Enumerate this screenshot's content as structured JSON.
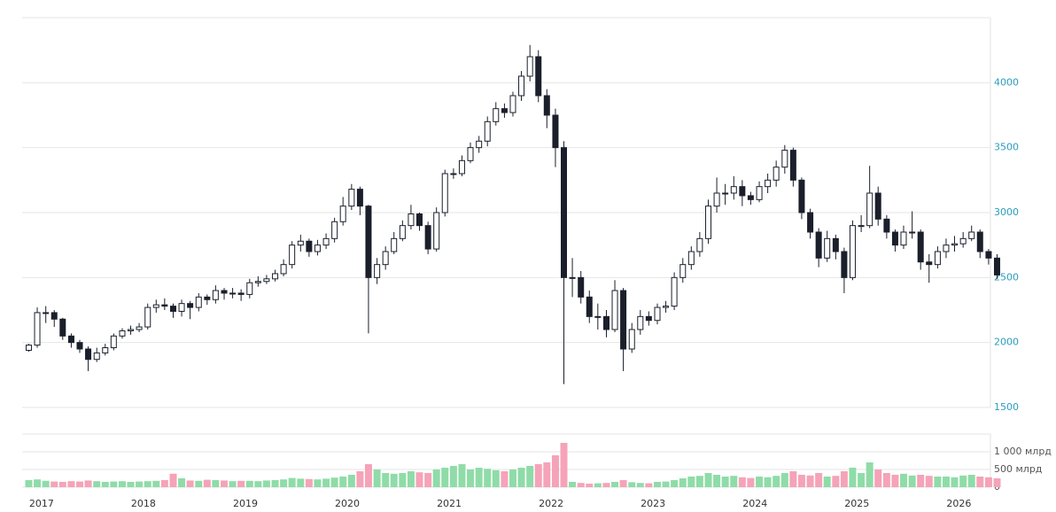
{
  "chart_data": [
    {
      "type": "candlestick",
      "up_color": "#ffffff",
      "down_color": "#1a1f2b",
      "outline_color": "#1a1f2b",
      "tick_color": "#2a9dbd",
      "grid": true,
      "xlim": [
        2016.81,
        2026.31
      ],
      "ylim": [
        1500,
        4500
      ],
      "yticks": [
        1500,
        2000,
        2500,
        3000,
        3500,
        4000
      ],
      "x": [
        2016.875,
        2016.958,
        2017.042,
        2017.125,
        2017.208,
        2017.292,
        2017.375,
        2017.458,
        2017.542,
        2017.625,
        2017.708,
        2017.792,
        2017.875,
        2017.958,
        2018.042,
        2018.125,
        2018.208,
        2018.292,
        2018.375,
        2018.458,
        2018.542,
        2018.625,
        2018.708,
        2018.792,
        2018.875,
        2018.958,
        2019.042,
        2019.125,
        2019.208,
        2019.292,
        2019.375,
        2019.458,
        2019.542,
        2019.625,
        2019.708,
        2019.792,
        2019.875,
        2019.958,
        2020.042,
        2020.125,
        2020.208,
        2020.292,
        2020.375,
        2020.458,
        2020.542,
        2020.625,
        2020.708,
        2020.792,
        2020.875,
        2020.958,
        2021.042,
        2021.125,
        2021.208,
        2021.292,
        2021.375,
        2021.458,
        2021.542,
        2021.625,
        2021.708,
        2021.792,
        2021.875,
        2021.958,
        2022.042,
        2022.125,
        2022.208,
        2022.292,
        2022.375,
        2022.458,
        2022.542,
        2022.625,
        2022.708,
        2022.792,
        2022.875,
        2022.958,
        2023.042,
        2023.125,
        2023.208,
        2023.292,
        2023.375,
        2023.458,
        2023.542,
        2023.625,
        2023.708,
        2023.792,
        2023.875,
        2023.958,
        2024.042,
        2024.125,
        2024.208,
        2024.292,
        2024.375,
        2024.458,
        2024.542,
        2024.625,
        2024.708,
        2024.792,
        2024.875,
        2024.958,
        2025.042,
        2025.125,
        2025.208,
        2025.292,
        2025.375,
        2025.458,
        2025.542,
        2025.625,
        2025.708,
        2025.792,
        2025.875,
        2025.958,
        2026.042,
        2026.125,
        2026.208,
        2026.292,
        2026.375
      ],
      "open": [
        1940,
        1980,
        2230,
        2230,
        2180,
        2050,
        2000,
        1950,
        1870,
        1920,
        1960,
        2050,
        2090,
        2100,
        2120,
        2270,
        2290,
        2280,
        2240,
        2300,
        2270,
        2350,
        2330,
        2400,
        2380,
        2380,
        2370,
        2460,
        2470,
        2490,
        2530,
        2600,
        2750,
        2780,
        2700,
        2750,
        2800,
        2930,
        3050,
        3180,
        3050,
        2500,
        2600,
        2700,
        2800,
        2900,
        2990,
        2900,
        2720,
        3000,
        3300,
        3300,
        3400,
        3500,
        3550,
        3700,
        3800,
        3770,
        3900,
        4050,
        4200,
        3900,
        3750,
        3500,
        2500,
        2500,
        2350,
        2200,
        2200,
        2100,
        2400,
        1950,
        2100,
        2200,
        2170,
        2270,
        2280,
        2500,
        2600,
        2700,
        2800,
        3050,
        3150,
        3150,
        3200,
        3130,
        3100,
        3200,
        3250,
        3350,
        3480,
        3250,
        3000,
        2850,
        2650,
        2800,
        2700,
        2500,
        2900,
        2900,
        3150,
        2950,
        2850,
        2750,
        2850,
        2850,
        2620,
        2600,
        2700,
        2750,
        2760,
        2800,
        2850,
        2700,
        2650
      ],
      "high": [
        1990,
        2270,
        2280,
        2250,
        2190,
        2070,
        2020,
        1970,
        1960,
        1990,
        2070,
        2110,
        2130,
        2150,
        2300,
        2330,
        2340,
        2300,
        2330,
        2320,
        2380,
        2370,
        2440,
        2420,
        2420,
        2410,
        2490,
        2510,
        2520,
        2560,
        2640,
        2780,
        2830,
        2800,
        2790,
        2840,
        2960,
        3120,
        3220,
        3200,
        3060,
        2650,
        2740,
        2850,
        2940,
        3060,
        3000,
        2930,
        3040,
        3330,
        3340,
        3440,
        3540,
        3590,
        3740,
        3850,
        3840,
        3930,
        4090,
        4290,
        4250,
        3950,
        3800,
        3550,
        2650,
        2550,
        2400,
        2300,
        2250,
        2480,
        2420,
        2150,
        2250,
        2240,
        2300,
        2320,
        2540,
        2650,
        2740,
        2850,
        3100,
        3270,
        3220,
        3280,
        3250,
        3160,
        3240,
        3300,
        3400,
        3520,
        3500,
        3270,
        3030,
        2880,
        2860,
        2830,
        2730,
        2940,
        2980,
        3360,
        3200,
        2980,
        2870,
        2900,
        3010,
        2870,
        2680,
        2740,
        2800,
        2820,
        2850,
        2900,
        2870,
        2720,
        2680
      ],
      "low": [
        1930,
        1960,
        2150,
        2120,
        2020,
        1960,
        1920,
        1780,
        1850,
        1900,
        1940,
        2030,
        2060,
        2080,
        2100,
        2230,
        2250,
        2190,
        2200,
        2180,
        2240,
        2290,
        2300,
        2330,
        2340,
        2320,
        2340,
        2430,
        2450,
        2470,
        2510,
        2570,
        2700,
        2660,
        2670,
        2720,
        2770,
        2900,
        3020,
        2980,
        2070,
        2450,
        2560,
        2680,
        2780,
        2870,
        2860,
        2680,
        2700,
        2970,
        3260,
        3280,
        3380,
        3460,
        3510,
        3670,
        3730,
        3740,
        3860,
        4010,
        3850,
        3650,
        3350,
        1680,
        2350,
        2300,
        2150,
        2100,
        2040,
        2080,
        1780,
        1920,
        2060,
        2130,
        2140,
        2230,
        2250,
        2460,
        2560,
        2660,
        2760,
        3000,
        3060,
        3100,
        3050,
        3060,
        3080,
        3150,
        3200,
        3300,
        3200,
        2950,
        2800,
        2580,
        2620,
        2640,
        2380,
        2480,
        2850,
        2880,
        2900,
        2800,
        2700,
        2720,
        2800,
        2560,
        2460,
        2570,
        2650,
        2700,
        2730,
        2780,
        2650,
        2600,
        2490
      ],
      "close": [
        1980,
        2230,
        2230,
        2180,
        2050,
        2000,
        1950,
        1870,
        1920,
        1960,
        2050,
        2090,
        2100,
        2120,
        2270,
        2290,
        2280,
        2240,
        2300,
        2270,
        2350,
        2330,
        2400,
        2380,
        2380,
        2370,
        2460,
        2470,
        2490,
        2530,
        2600,
        2750,
        2780,
        2700,
        2750,
        2800,
        2930,
        3050,
        3180,
        3050,
        2500,
        2600,
        2700,
        2800,
        2900,
        2990,
        2900,
        2720,
        3000,
        3300,
        3300,
        3400,
        3500,
        3550,
        3700,
        3800,
        3770,
        3900,
        4050,
        4200,
        3900,
        3750,
        3500,
        2500,
        2500,
        2350,
        2200,
        2200,
        2100,
        2400,
        1950,
        2100,
        2200,
        2170,
        2270,
        2280,
        2500,
        2600,
        2700,
        2800,
        3050,
        3150,
        3150,
        3200,
        3130,
        3100,
        3200,
        3250,
        3350,
        3480,
        3250,
        3000,
        2850,
        2650,
        2800,
        2700,
        2500,
        2900,
        2900,
        3150,
        2950,
        2850,
        2750,
        2850,
        2850,
        2620,
        2600,
        2700,
        2750,
        2760,
        2800,
        2850,
        2700,
        2650,
        2520
      ]
    },
    {
      "type": "volume",
      "up_color": "#8fdca8",
      "down_color": "#f5a3b8",
      "tick_color": "#555555",
      "grid": true,
      "xlim": [
        2016.81,
        2026.31
      ],
      "xticks": [
        2017,
        2018,
        2019,
        2020,
        2021,
        2022,
        2023,
        2024,
        2025,
        2026
      ],
      "ylim": [
        0,
        1500
      ],
      "yticks": [
        0,
        {
          "value": 500,
          "label": "500 млрд"
        },
        {
          "value": 1000,
          "label": "1 000 млрд"
        }
      ],
      "x": [
        2016.875,
        2016.958,
        2017.042,
        2017.125,
        2017.208,
        2017.292,
        2017.375,
        2017.458,
        2017.542,
        2017.625,
        2017.708,
        2017.792,
        2017.875,
        2017.958,
        2018.042,
        2018.125,
        2018.208,
        2018.292,
        2018.375,
        2018.458,
        2018.542,
        2018.625,
        2018.708,
        2018.792,
        2018.875,
        2018.958,
        2019.042,
        2019.125,
        2019.208,
        2019.292,
        2019.375,
        2019.458,
        2019.542,
        2019.625,
        2019.708,
        2019.792,
        2019.875,
        2019.958,
        2020.042,
        2020.125,
        2020.208,
        2020.292,
        2020.375,
        2020.458,
        2020.542,
        2020.625,
        2020.708,
        2020.792,
        2020.875,
        2020.958,
        2021.042,
        2021.125,
        2021.208,
        2021.292,
        2021.375,
        2021.458,
        2021.542,
        2021.625,
        2021.708,
        2021.792,
        2021.875,
        2021.958,
        2022.042,
        2022.125,
        2022.208,
        2022.292,
        2022.375,
        2022.458,
        2022.542,
        2022.625,
        2022.708,
        2022.792,
        2022.875,
        2022.958,
        2023.042,
        2023.125,
        2023.208,
        2023.292,
        2023.375,
        2023.458,
        2023.542,
        2023.625,
        2023.708,
        2023.792,
        2023.875,
        2023.958,
        2024.042,
        2024.125,
        2024.208,
        2024.292,
        2024.375,
        2024.458,
        2024.542,
        2024.625,
        2024.708,
        2024.792,
        2024.875,
        2024.958,
        2025.042,
        2025.125,
        2025.208,
        2025.292,
        2025.375,
        2025.458,
        2025.542,
        2025.625,
        2025.708,
        2025.792,
        2025.875,
        2025.958,
        2026.042,
        2026.125,
        2026.208,
        2026.292,
        2026.375
      ],
      "values": [
        200,
        220,
        180,
        160,
        150,
        170,
        160,
        190,
        170,
        150,
        160,
        170,
        150,
        160,
        170,
        180,
        200,
        380,
        250,
        190,
        180,
        210,
        200,
        190,
        170,
        180,
        180,
        170,
        190,
        200,
        220,
        260,
        240,
        230,
        220,
        240,
        270,
        300,
        350,
        450,
        650,
        500,
        400,
        380,
        400,
        450,
        420,
        400,
        500,
        550,
        600,
        650,
        500,
        550,
        520,
        480,
        450,
        500,
        550,
        600,
        650,
        700,
        900,
        1250,
        150,
        120,
        100,
        110,
        120,
        150,
        200,
        140,
        120,
        110,
        150,
        160,
        200,
        250,
        300,
        320,
        400,
        350,
        300,
        320,
        280,
        260,
        300,
        280,
        320,
        400,
        450,
        350,
        330,
        400,
        300,
        320,
        450,
        550,
        400,
        700,
        500,
        400,
        350,
        380,
        330,
        350,
        320,
        300,
        300,
        280,
        330,
        350,
        300,
        280,
        250
      ]
    }
  ]
}
